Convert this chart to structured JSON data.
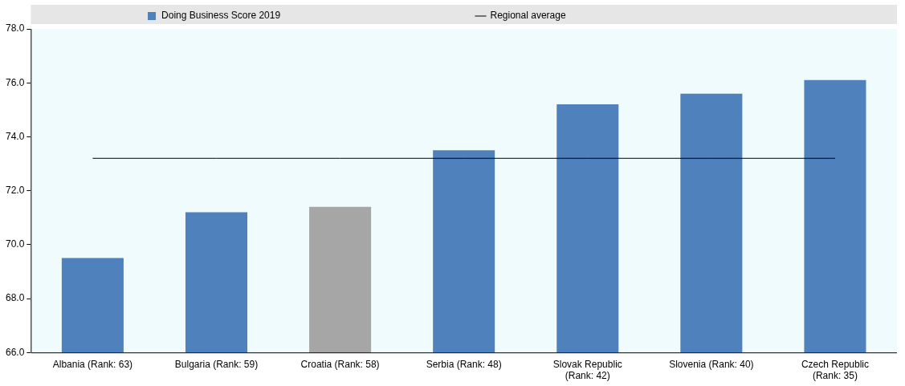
{
  "chart_data": {
    "type": "bar",
    "categories": [
      "Albania (Rank: 63)",
      "Bulgaria (Rank: 59)",
      "Croatia (Rank: 58)",
      "Serbia (Rank: 48)",
      "Slovak Republic (Rank: 42)",
      "Slovenia (Rank: 40)",
      "Czech Republic (Rank: 35)"
    ],
    "series": [
      {
        "name": "Doing Business Score 2019",
        "color": "#4f81bd",
        "colors": [
          "#4f81bd",
          "#4f81bd",
          "#a6a6a6",
          "#4f81bd",
          "#4f81bd",
          "#4f81bd",
          "#4f81bd"
        ],
        "values": [
          69.5,
          71.2,
          71.4,
          73.5,
          75.2,
          75.6,
          76.1
        ]
      },
      {
        "name": "Regional average",
        "type": "line",
        "color": "#000000",
        "values": [
          73.2,
          73.2,
          73.2,
          73.2,
          73.2,
          73.2,
          73.2
        ]
      }
    ],
    "ylim": [
      66,
      78
    ],
    "yticks": [
      {
        "value": 66,
        "label": "66.0"
      },
      {
        "value": 68,
        "label": "68.0"
      },
      {
        "value": 70,
        "label": "70.0"
      },
      {
        "value": 72,
        "label": "72.0"
      },
      {
        "value": 74,
        "label": "74.0"
      },
      {
        "value": 76,
        "label": "76.0"
      },
      {
        "value": 78,
        "label": "78.0"
      }
    ],
    "grid": false,
    "legend": "top",
    "marker": "none"
  }
}
